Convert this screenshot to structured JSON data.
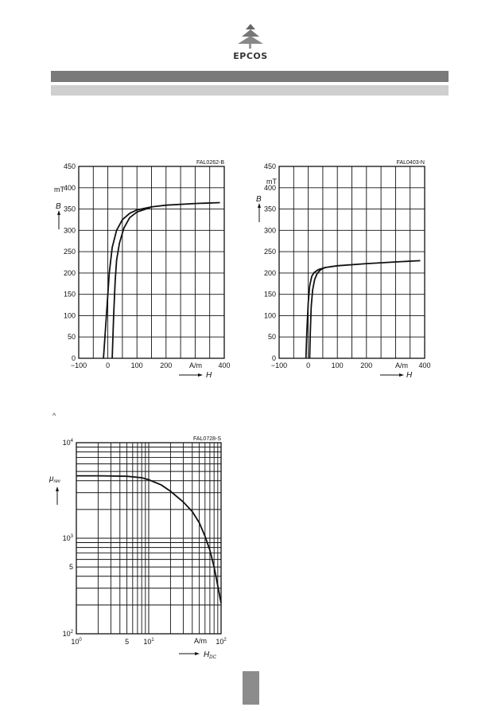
{
  "header": {
    "brand": "EPCOS"
  },
  "misc": {
    "caret": "^"
  },
  "chart_data": [
    {
      "type": "line",
      "figure_code": "FAL0262-B",
      "xlabel": "H",
      "ylabel": "B",
      "x_unit": "A/m",
      "y_unit": "mT",
      "xlim": [
        -100,
        400
      ],
      "ylim": [
        0,
        450
      ],
      "x_ticks": [
        "−100",
        "0",
        "100",
        "200",
        "400"
      ],
      "y_ticks": [
        "0",
        "50",
        "100",
        "150",
        "200",
        "250",
        "300",
        "350",
        "400",
        "450"
      ],
      "grid": true,
      "series": [
        {
          "x": [
            -15,
            -5,
            5,
            15,
            30,
            50,
            75,
            100,
            150,
            200,
            300,
            385
          ],
          "y": [
            0,
            100,
            200,
            260,
            300,
            325,
            340,
            348,
            355,
            359,
            363,
            365
          ]
        },
        {
          "x": [
            15,
            20,
            25,
            30,
            40,
            55,
            75,
            100,
            130,
            150
          ],
          "y": [
            0,
            100,
            180,
            230,
            270,
            305,
            330,
            343,
            350,
            355
          ]
        }
      ]
    },
    {
      "type": "line",
      "figure_code": "FAL0403-N",
      "xlabel": "H",
      "ylabel": "B",
      "x_unit": "A/m",
      "y_unit": "mT",
      "xlim": [
        -100,
        400
      ],
      "ylim": [
        0,
        450
      ],
      "x_ticks": [
        "−100",
        "0",
        "100",
        "200",
        "400"
      ],
      "y_ticks": [
        "0",
        "50",
        "100",
        "150",
        "200",
        "250",
        "300",
        "350",
        "400",
        "450"
      ],
      "grid": true,
      "series": [
        {
          "x": [
            -8,
            -5,
            0,
            5,
            12,
            20,
            35,
            60,
            100,
            200,
            300,
            385
          ],
          "y": [
            0,
            60,
            130,
            170,
            192,
            201,
            208,
            213,
            217,
            222,
            226,
            229
          ]
        },
        {
          "x": [
            5,
            7,
            10,
            15,
            22,
            30,
            40,
            50,
            60
          ],
          "y": [
            0,
            60,
            120,
            160,
            185,
            198,
            206,
            211,
            213
          ]
        }
      ]
    },
    {
      "type": "line",
      "figure_code": "FAL0728-S",
      "xlabel": "H",
      "xlabel_sub": "DC",
      "ylabel": "μ",
      "ylabel_sub": "rev",
      "x_unit": "A/m",
      "x_scale": "log",
      "y_scale": "log",
      "xlim": [
        1,
        100
      ],
      "ylim": [
        100,
        10000
      ],
      "x_ticks": [
        {
          "base": "10",
          "exp": "0"
        },
        {
          "base": "5",
          "exp": ""
        },
        {
          "base": "10",
          "exp": "1"
        },
        {
          "base": "10",
          "exp": "2"
        }
      ],
      "y_ticks": [
        {
          "base": "10",
          "exp": "2"
        },
        {
          "base": "5",
          "exp": ""
        },
        {
          "base": "10",
          "exp": "3"
        },
        {
          "base": "10",
          "exp": "4"
        }
      ],
      "grid": true,
      "series": [
        {
          "x": [
            1,
            2,
            5,
            8,
            10,
            15,
            20,
            30,
            40,
            50,
            60,
            70,
            80,
            90,
            100
          ],
          "y": [
            4500,
            4500,
            4450,
            4300,
            4100,
            3600,
            3100,
            2400,
            1900,
            1450,
            1050,
            750,
            500,
            320,
            210
          ]
        }
      ]
    }
  ]
}
